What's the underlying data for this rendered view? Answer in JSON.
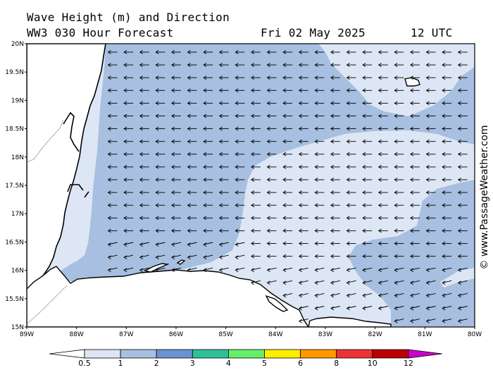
{
  "header": {
    "line1": "Wave Height (m) and Direction",
    "model": "WW3 030 Hour Forecast",
    "date": "Fri 02 May 2025",
    "time": "12 UTC"
  },
  "credit": "© www.PassageWeather.com",
  "map": {
    "lat_ticks": [
      "20N",
      "19.5N",
      "19N",
      "18.5N",
      "18N",
      "17.5N",
      "17N",
      "16.5N",
      "16N",
      "15.5N",
      "15N"
    ],
    "lon_ticks": [
      "89W",
      "88W",
      "87W",
      "86W",
      "85W",
      "84W",
      "83W",
      "82W",
      "81W",
      "80W"
    ],
    "lat_range": [
      15,
      20
    ],
    "lon_range": [
      -89,
      -80
    ],
    "arrow_direction": "westward",
    "colors": {
      "land": "#ffffff",
      "wave_0_5_1": "#dde6f4",
      "wave_1_2": "#a7bfe0",
      "coast": "#000000",
      "arrow": "#000000"
    }
  },
  "colorbar": {
    "labels": [
      "0.5",
      "1",
      "2",
      "3",
      "4",
      "5",
      "6",
      "8",
      "10",
      "12"
    ],
    "colors": [
      "#ffffff",
      "#dde6f4",
      "#a7bfe0",
      "#6b93d0",
      "#2ebf9b",
      "#66ef66",
      "#ffee00",
      "#ff9900",
      "#ee3333",
      "#bb0000",
      "#cc00cc"
    ]
  }
}
